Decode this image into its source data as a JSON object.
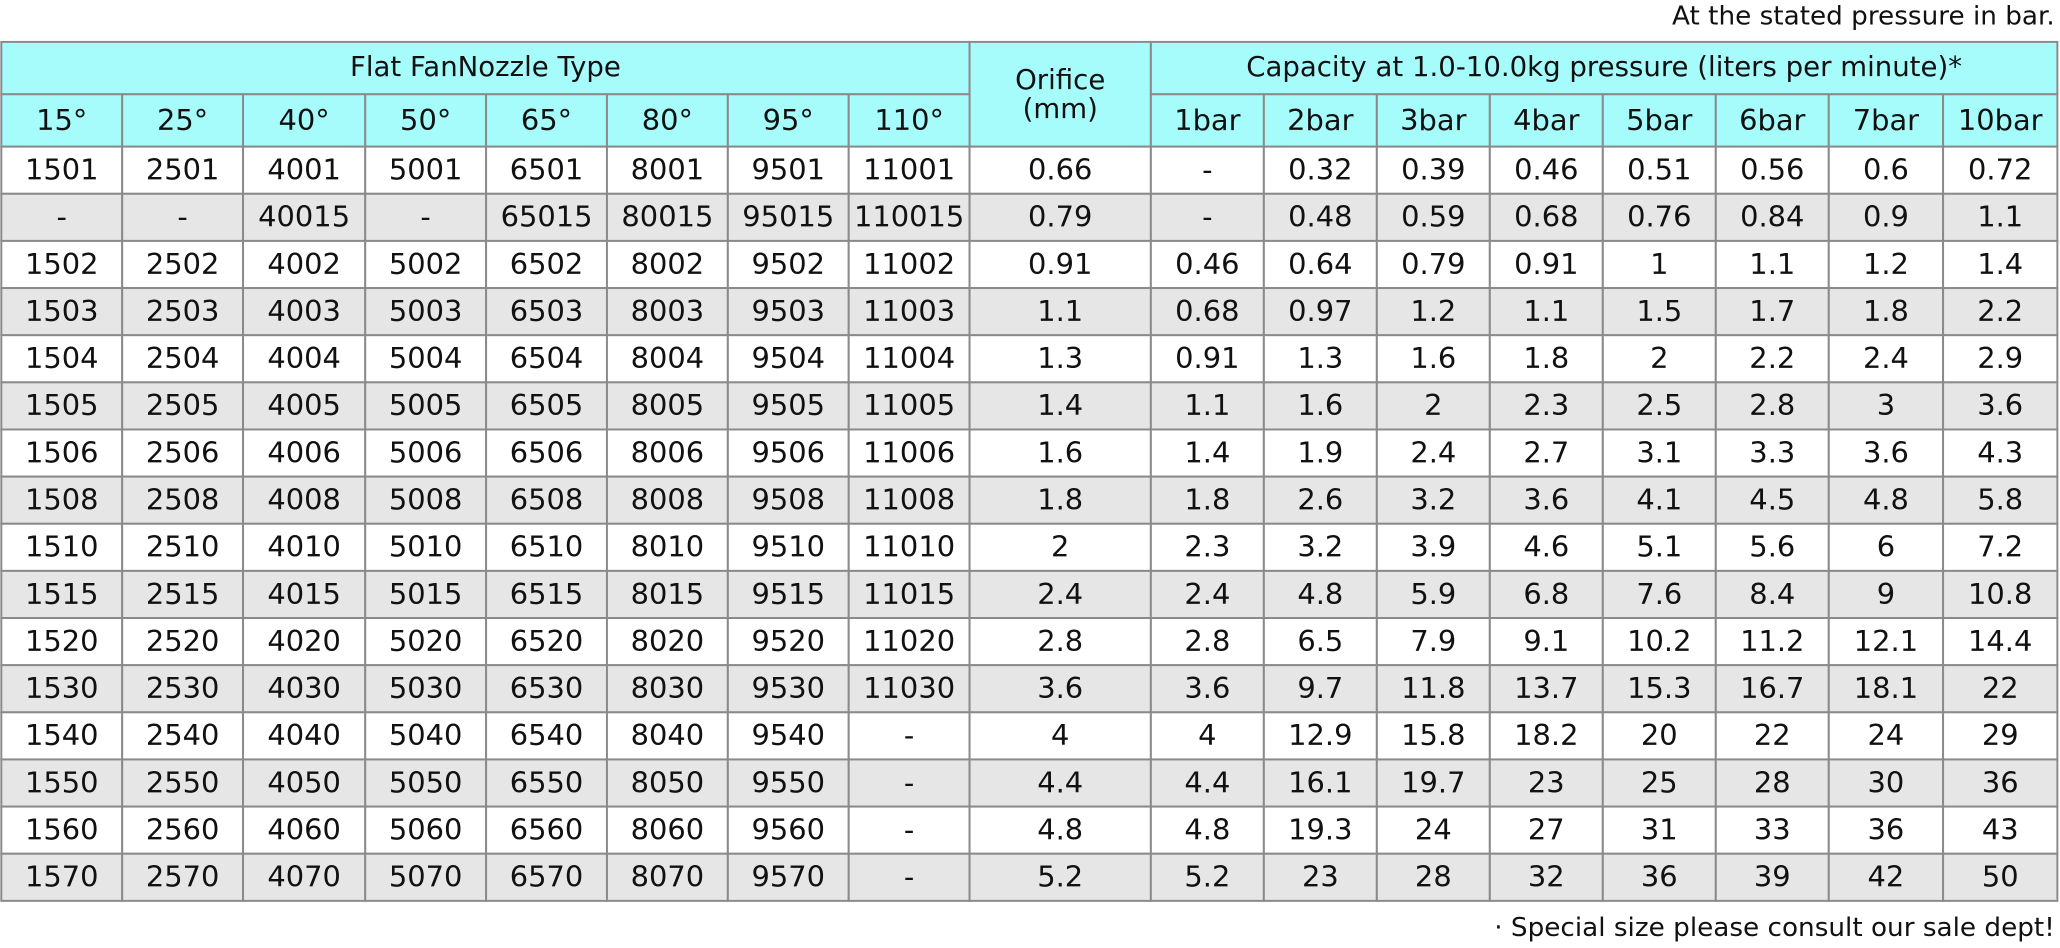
{
  "note_top": "At the stated pressure in bar.",
  "header": {
    "group1": "Flat FanNozzle Type",
    "orifice": "Orifice (mm)",
    "group2": "Capacity at 1.0-10.0kg pressure (liters per minute)*",
    "angles": [
      "15°",
      "25°",
      "40°",
      "50°",
      "65°",
      "80°",
      "95°",
      "110°"
    ],
    "pressures": [
      "1bar",
      "2bar",
      "3bar",
      "4bar",
      "5bar",
      "6bar",
      "7bar",
      "10bar"
    ]
  },
  "table": {
    "rows": [
      [
        "1501",
        "2501",
        "4001",
        "5001",
        "6501",
        "8001",
        "9501",
        "11001",
        "0.66",
        "-",
        "0.32",
        "0.39",
        "0.46",
        "0.51",
        "0.56",
        "0.6",
        "0.72"
      ],
      [
        "-",
        "-",
        "40015",
        "-",
        "65015",
        "80015",
        "95015",
        "110015",
        "0.79",
        "-",
        "0.48",
        "0.59",
        "0.68",
        "0.76",
        "0.84",
        "0.9",
        "1.1"
      ],
      [
        "1502",
        "2502",
        "4002",
        "5002",
        "6502",
        "8002",
        "9502",
        "11002",
        "0.91",
        "0.46",
        "0.64",
        "0.79",
        "0.91",
        "1",
        "1.1",
        "1.2",
        "1.4"
      ],
      [
        "1503",
        "2503",
        "4003",
        "5003",
        "6503",
        "8003",
        "9503",
        "11003",
        "1.1",
        "0.68",
        "0.97",
        "1.2",
        "1.1",
        "1.5",
        "1.7",
        "1.8",
        "2.2"
      ],
      [
        "1504",
        "2504",
        "4004",
        "5004",
        "6504",
        "8004",
        "9504",
        "11004",
        "1.3",
        "0.91",
        "1.3",
        "1.6",
        "1.8",
        "2",
        "2.2",
        "2.4",
        "2.9"
      ],
      [
        "1505",
        "2505",
        "4005",
        "5005",
        "6505",
        "8005",
        "9505",
        "11005",
        "1.4",
        "1.1",
        "1.6",
        "2",
        "2.3",
        "2.5",
        "2.8",
        "3",
        "3.6"
      ],
      [
        "1506",
        "2506",
        "4006",
        "5006",
        "6506",
        "8006",
        "9506",
        "11006",
        "1.6",
        "1.4",
        "1.9",
        "2.4",
        "2.7",
        "3.1",
        "3.3",
        "3.6",
        "4.3"
      ],
      [
        "1508",
        "2508",
        "4008",
        "5008",
        "6508",
        "8008",
        "9508",
        "11008",
        "1.8",
        "1.8",
        "2.6",
        "3.2",
        "3.6",
        "4.1",
        "4.5",
        "4.8",
        "5.8"
      ],
      [
        "1510",
        "2510",
        "4010",
        "5010",
        "6510",
        "8010",
        "9510",
        "11010",
        "2",
        "2.3",
        "3.2",
        "3.9",
        "4.6",
        "5.1",
        "5.6",
        "6",
        "7.2"
      ],
      [
        "1515",
        "2515",
        "4015",
        "5015",
        "6515",
        "8015",
        "9515",
        "11015",
        "2.4",
        "2.4",
        "4.8",
        "5.9",
        "6.8",
        "7.6",
        "8.4",
        "9",
        "10.8"
      ],
      [
        "1520",
        "2520",
        "4020",
        "5020",
        "6520",
        "8020",
        "9520",
        "11020",
        "2.8",
        "2.8",
        "6.5",
        "7.9",
        "9.1",
        "10.2",
        "11.2",
        "12.1",
        "14.4"
      ],
      [
        "1530",
        "2530",
        "4030",
        "5030",
        "6530",
        "8030",
        "9530",
        "11030",
        "3.6",
        "3.6",
        "9.7",
        "11.8",
        "13.7",
        "15.3",
        "16.7",
        "18.1",
        "22"
      ],
      [
        "1540",
        "2540",
        "4040",
        "5040",
        "6540",
        "8040",
        "9540",
        "-",
        "4",
        "4",
        "12.9",
        "15.8",
        "18.2",
        "20",
        "22",
        "24",
        "29"
      ],
      [
        "1550",
        "2550",
        "4050",
        "5050",
        "6550",
        "8050",
        "9550",
        "-",
        "4.4",
        "4.4",
        "16.1",
        "19.7",
        "23",
        "25",
        "28",
        "30",
        "36"
      ],
      [
        "1560",
        "2560",
        "4060",
        "5060",
        "6560",
        "8060",
        "9560",
        "-",
        "4.8",
        "4.8",
        "19.3",
        "24",
        "27",
        "31",
        "33",
        "36",
        "43"
      ],
      [
        "1570",
        "2570",
        "4070",
        "5070",
        "6570",
        "8070",
        "9570",
        "-",
        "5.2",
        "5.2",
        "23",
        "28",
        "32",
        "36",
        "39",
        "42",
        "50"
      ]
    ]
  },
  "footnote": "· Special size please consult our sale dept!"
}
